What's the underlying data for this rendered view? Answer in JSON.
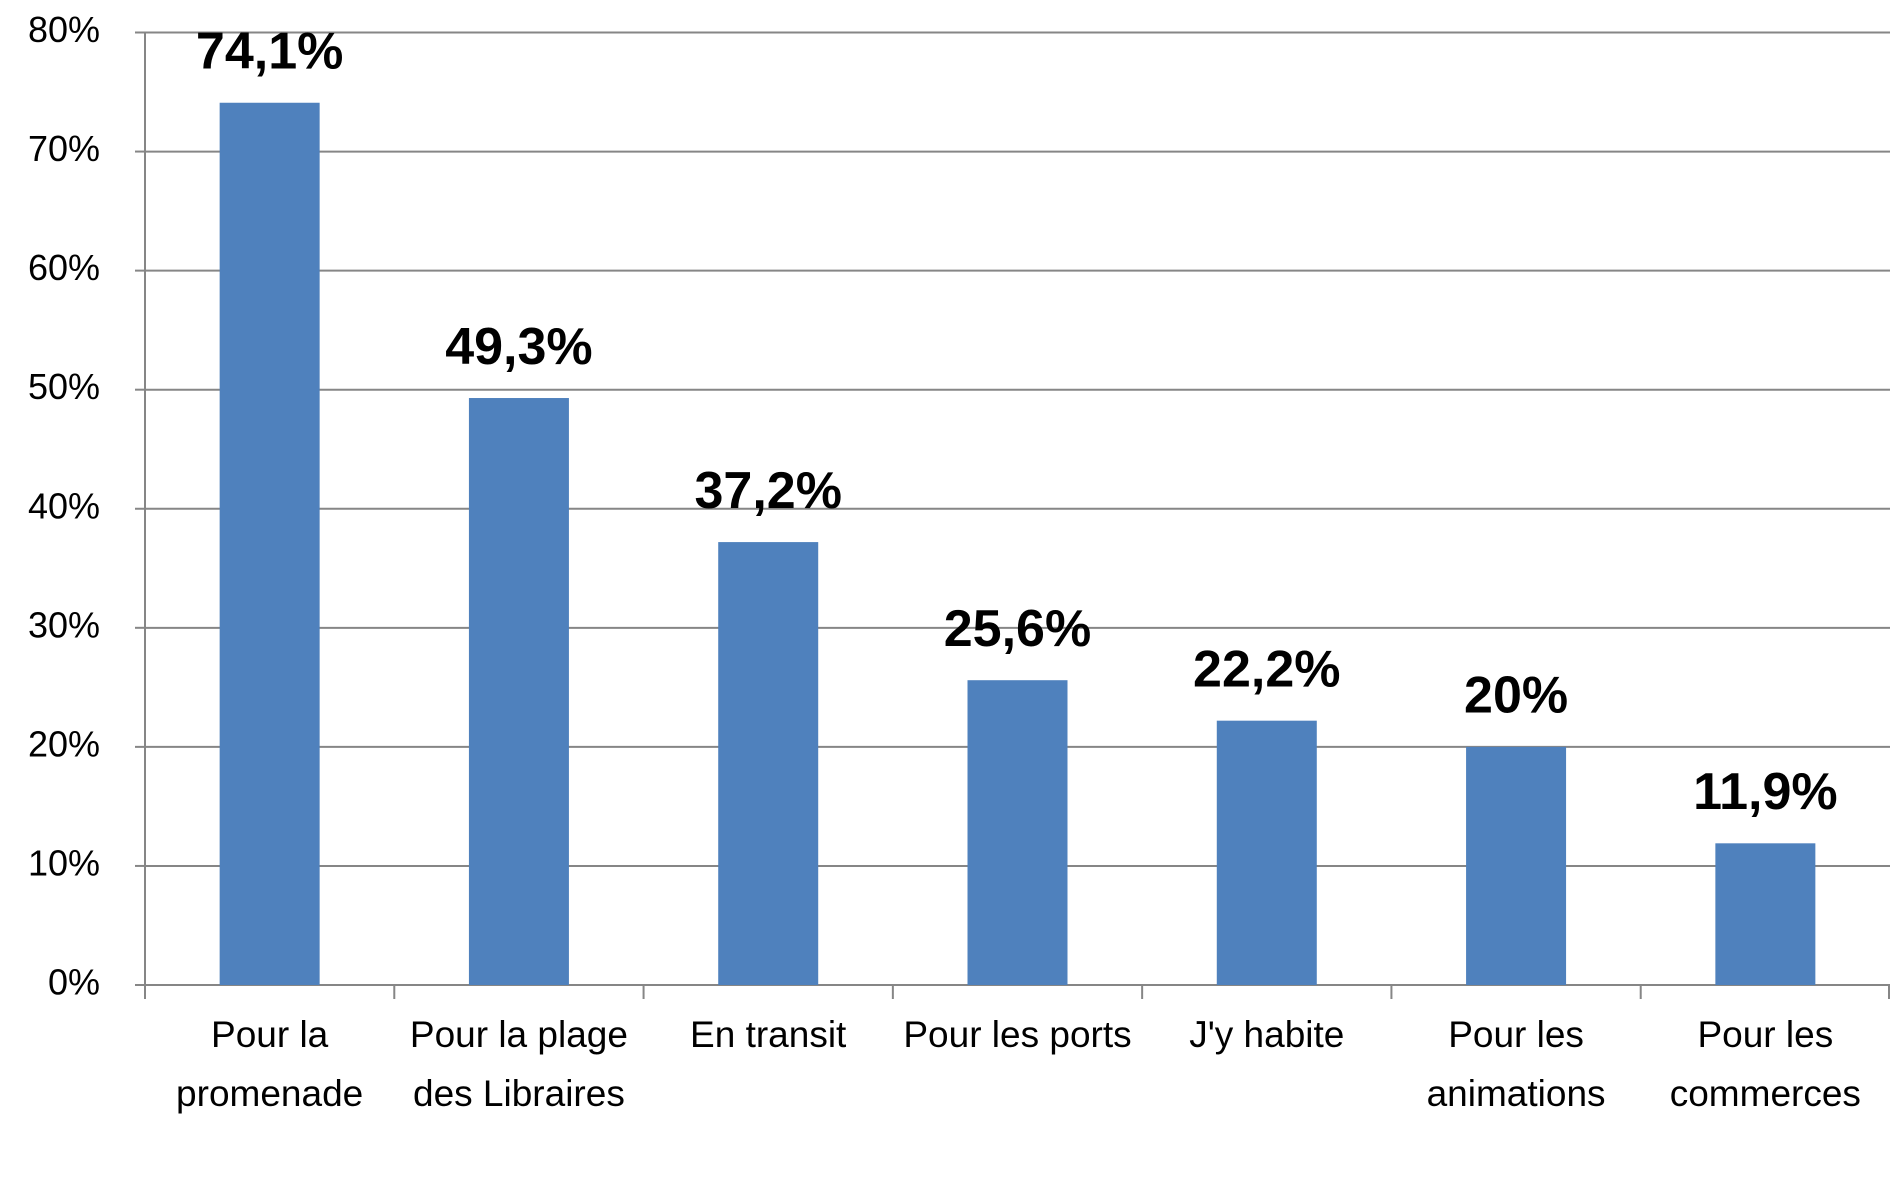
{
  "chart_data": {
    "type": "bar",
    "categories": [
      "Pour la promenade",
      "Pour la plage des Libraires",
      "En transit",
      "Pour les ports",
      "J'y habite",
      "Pour les animations",
      "Pour les commerces"
    ],
    "values": [
      74.1,
      49.3,
      37.2,
      25.6,
      22.2,
      20,
      11.9
    ],
    "value_labels": [
      "74,1%",
      "49,3%",
      "37,2%",
      "25,6%",
      "22,2%",
      "20%",
      "11,9%"
    ],
    "color": "#4f81bd",
    "ylim": [
      0,
      80
    ],
    "yticks": [
      {
        "value": 0,
        "label": "0%"
      },
      {
        "value": 10,
        "label": "10%"
      },
      {
        "value": 20,
        "label": "20%"
      },
      {
        "value": 30,
        "label": "30%"
      },
      {
        "value": 40,
        "label": "40%"
      },
      {
        "value": 50,
        "label": "50%"
      },
      {
        "value": 60,
        "label": "60%"
      },
      {
        "value": 70,
        "label": "70%"
      },
      {
        "value": 80,
        "label": "80%"
      }
    ],
    "grid": true
  }
}
